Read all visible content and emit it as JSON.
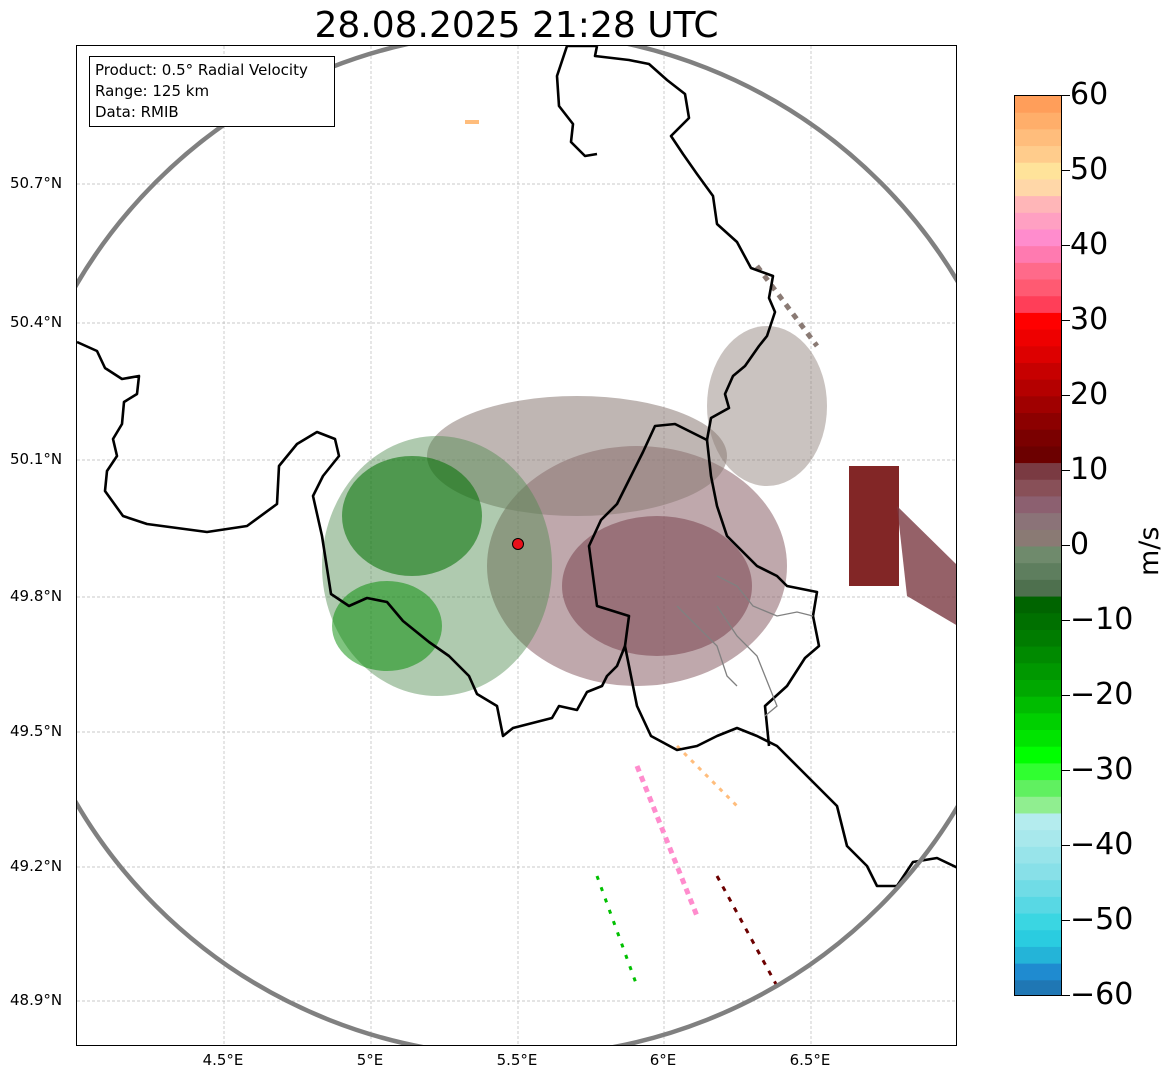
{
  "title": "28.08.2025 21:28 UTC",
  "info_box": {
    "lines": [
      "Product: 0.5° Radial Velocity",
      "Range: 125 km",
      "Data: RMIB"
    ]
  },
  "map": {
    "lat_labels": [
      "50.7°N",
      "50.4°N",
      "50.1°N",
      "49.8°N",
      "49.5°N",
      "49.2°N",
      "48.9°N"
    ],
    "lon_labels": [
      "4.5°E",
      "5°E",
      "5.5°E",
      "6°E",
      "6.5°E"
    ],
    "range_km": 125,
    "grid": true,
    "radar_site_color": "#e8101a"
  },
  "colorbar": {
    "unit": "m/s",
    "ticks": [
      "60",
      "50",
      "40",
      "30",
      "20",
      "10",
      "0",
      "−10",
      "−20",
      "−30",
      "−40",
      "−50",
      "−60"
    ],
    "min": -60,
    "max": 60,
    "colors_top_to_bottom": [
      "#ff9e5a",
      "#ffae6a",
      "#ffbd7c",
      "#ffcc8c",
      "#ffe39a",
      "#ffd7a8",
      "#ffb6b8",
      "#ffa0c2",
      "#ff8ccd",
      "#ff7ab0",
      "#ff6a8a",
      "#ff5a72",
      "#ff3e58",
      "#ff0000",
      "#ee0000",
      "#dd0000",
      "#c70000",
      "#b40000",
      "#a00000",
      "#8c0000",
      "#7a0000",
      "#6c0000",
      "#7a3a42",
      "#885058",
      "#8c6070",
      "#8b7378",
      "#8a7a74",
      "#6f8a6c",
      "#5e7e5e",
      "#4e704e",
      "#006400",
      "#007000",
      "#007c00",
      "#008a00",
      "#009800",
      "#00a800",
      "#00bc00",
      "#00d000",
      "#00e400",
      "#00ff00",
      "#30ff30",
      "#60f060",
      "#90ee90",
      "#b4ecee",
      "#a8e8ec",
      "#98e4ea",
      "#88e0e8",
      "#70dce6",
      "#58d8e4",
      "#3ad6e2",
      "#2acce0",
      "#24b4d8",
      "#1f8bd0",
      "#1f77b4"
    ]
  }
}
